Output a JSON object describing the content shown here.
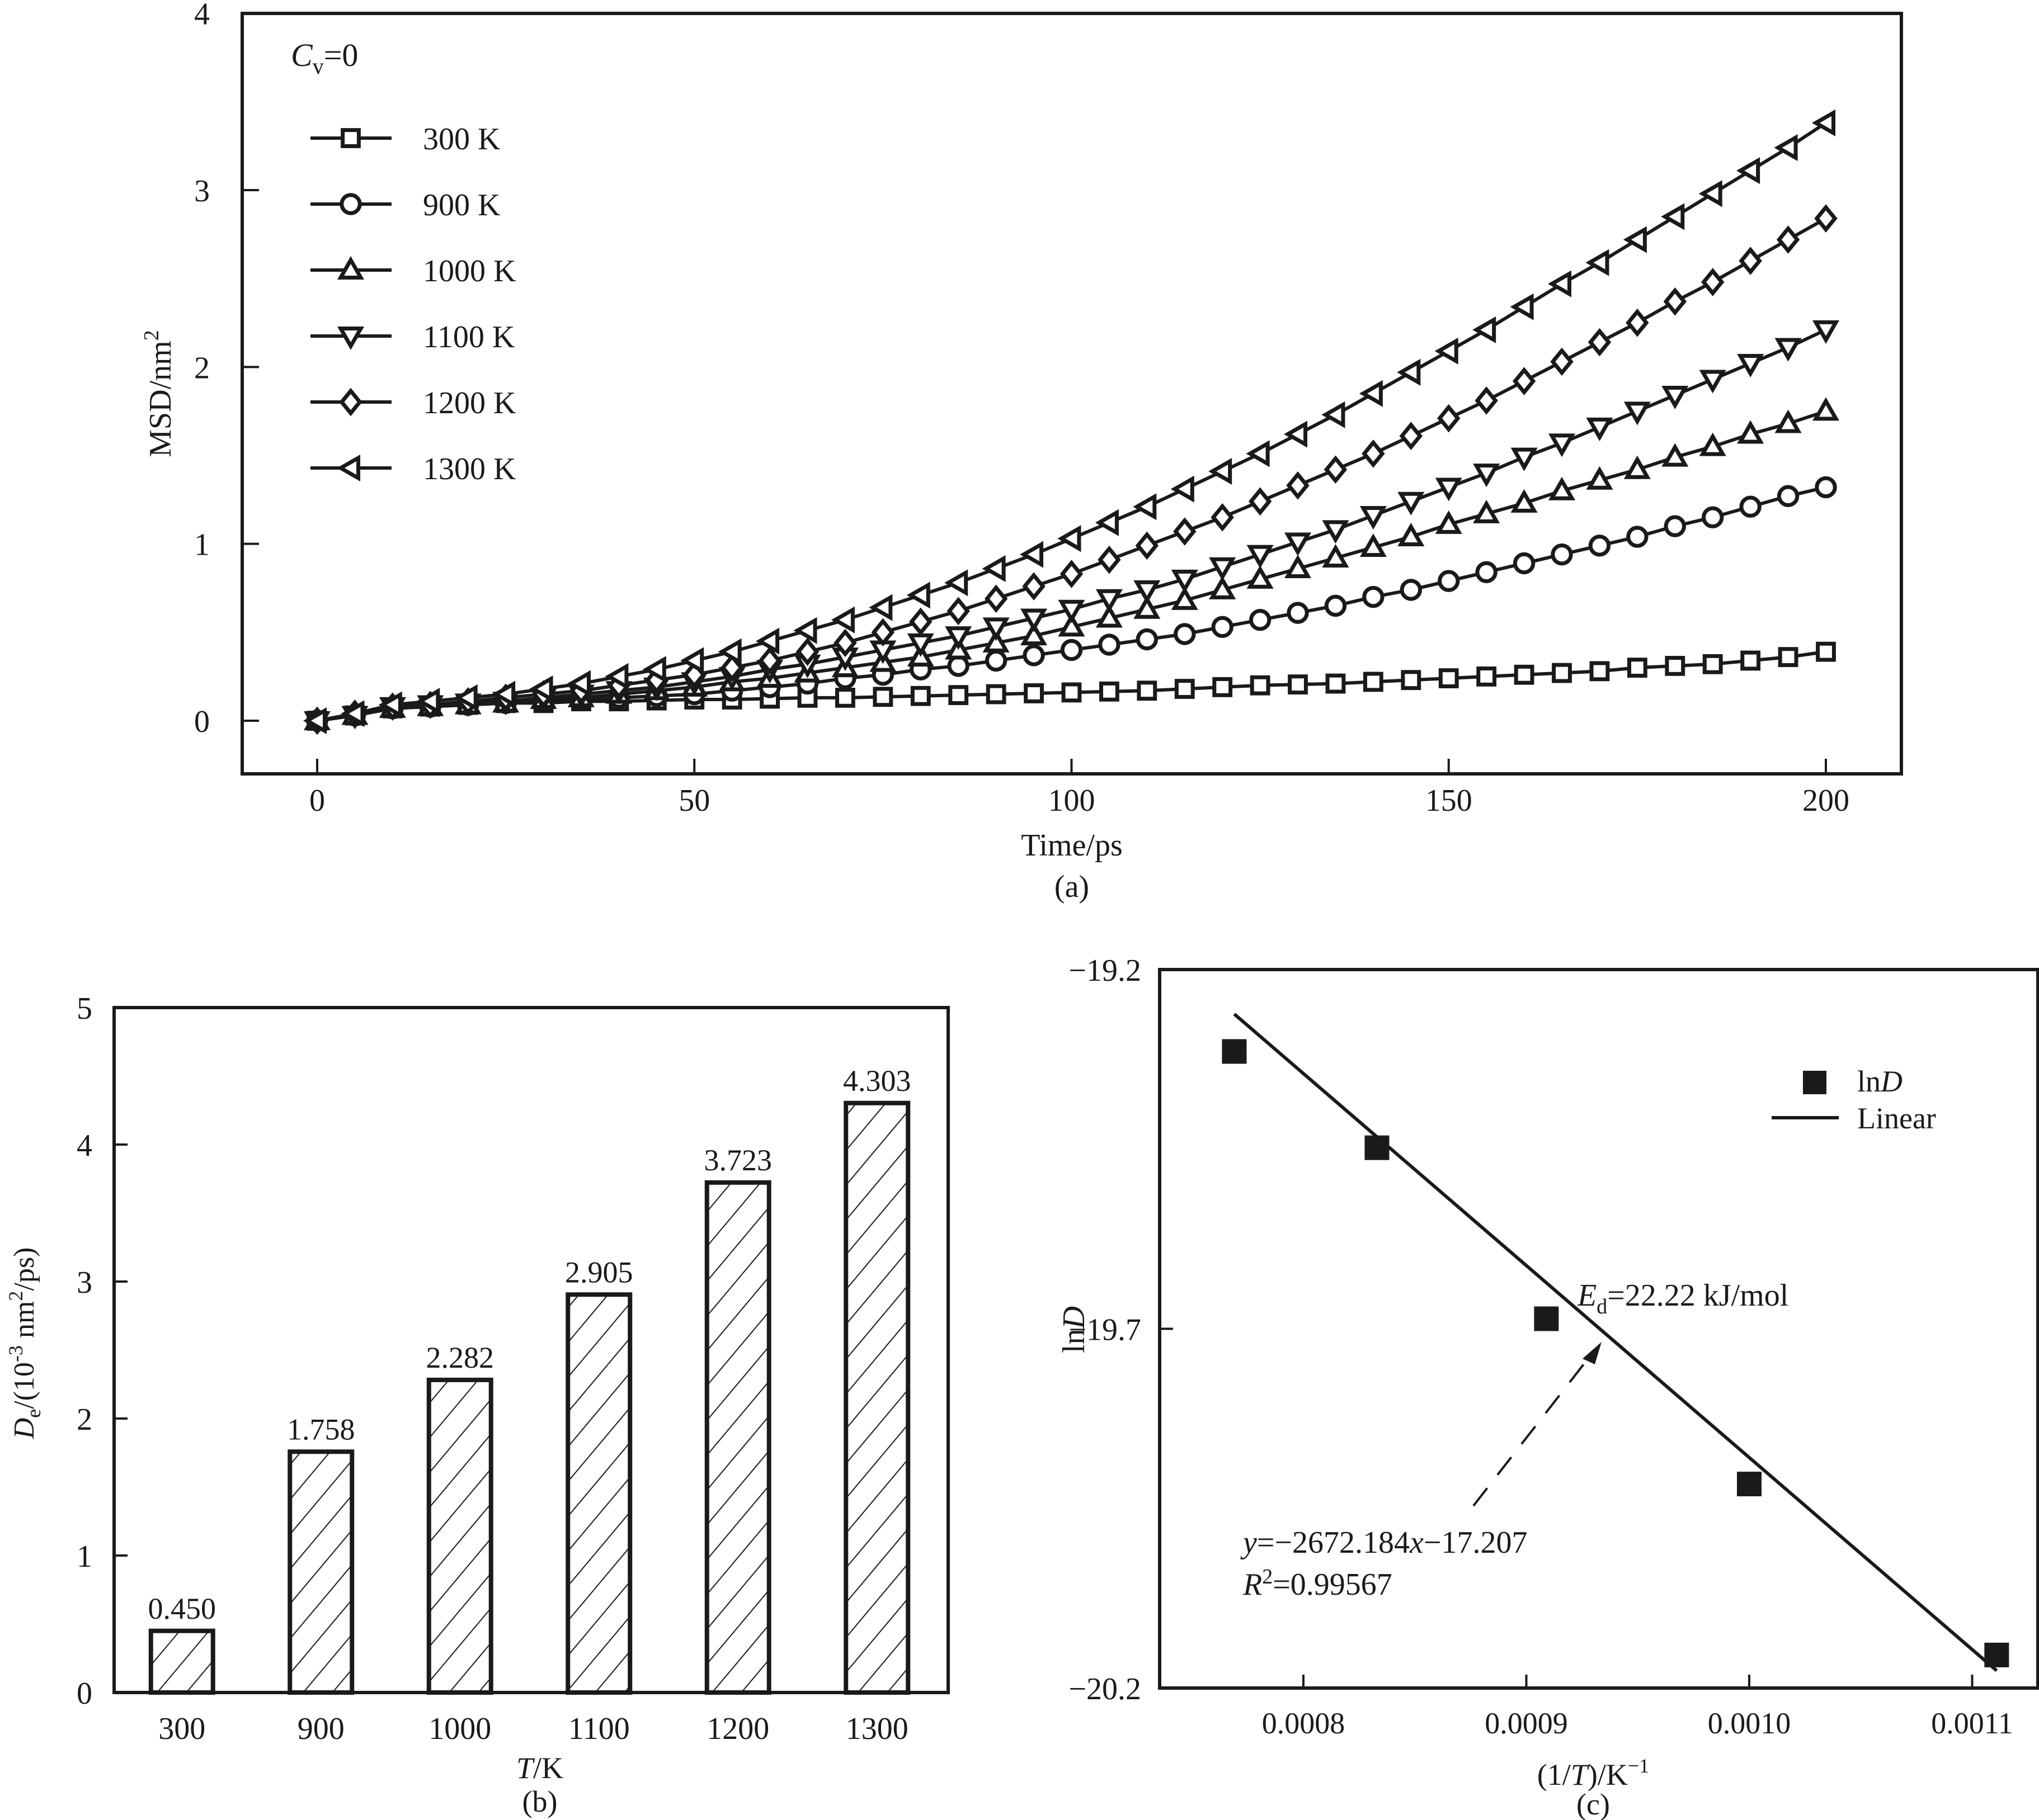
{
  "figure": {
    "panel_labels": [
      "(a)",
      "(b)",
      "(c)"
    ]
  },
  "chart_data": [
    {
      "id": "a",
      "type": "line",
      "title": "",
      "xlabel": "Time/ps",
      "ylabel": "MSD/nm²",
      "ylabel_main": "MSD/nm",
      "ylabel_sup": "2",
      "panel_label": "(a)",
      "xlim": [
        -10,
        210
      ],
      "ylim": [
        -0.3,
        4
      ],
      "xticks": [
        0,
        50,
        100,
        150,
        200
      ],
      "yticks": [
        0,
        1,
        2,
        3,
        4
      ],
      "annotation": {
        "symbol": "C",
        "subscript": "v",
        "rest": "=0"
      },
      "legend_position": "top-left",
      "x": [
        0,
        5,
        10,
        15,
        20,
        25,
        30,
        35,
        40,
        45,
        50,
        55,
        60,
        65,
        70,
        75,
        80,
        85,
        90,
        95,
        100,
        105,
        110,
        115,
        120,
        125,
        130,
        135,
        140,
        145,
        150,
        155,
        160,
        165,
        170,
        175,
        180,
        185,
        190,
        195,
        200
      ],
      "series": [
        {
          "name": "300 K",
          "marker": "square",
          "values": [
            0,
            0.03,
            0.07,
            0.08,
            0.09,
            0.1,
            0.1,
            0.11,
            0.11,
            0.115,
            0.12,
            0.12,
            0.125,
            0.13,
            0.13,
            0.135,
            0.14,
            0.145,
            0.15,
            0.155,
            0.16,
            0.165,
            0.17,
            0.18,
            0.19,
            0.2,
            0.205,
            0.21,
            0.22,
            0.23,
            0.24,
            0.25,
            0.26,
            0.27,
            0.28,
            0.3,
            0.31,
            0.32,
            0.34,
            0.36,
            0.39
          ]
        },
        {
          "name": "900 K",
          "marker": "circle",
          "values": [
            0,
            0.03,
            0.07,
            0.08,
            0.09,
            0.1,
            0.11,
            0.12,
            0.13,
            0.14,
            0.15,
            0.17,
            0.19,
            0.21,
            0.24,
            0.26,
            0.29,
            0.31,
            0.34,
            0.37,
            0.4,
            0.43,
            0.46,
            0.49,
            0.53,
            0.57,
            0.61,
            0.65,
            0.7,
            0.74,
            0.79,
            0.84,
            0.89,
            0.94,
            0.99,
            1.04,
            1.1,
            1.15,
            1.21,
            1.27,
            1.32
          ]
        },
        {
          "name": "1000 K",
          "marker": "triangle-up",
          "values": [
            0,
            0.03,
            0.07,
            0.08,
            0.09,
            0.1,
            0.12,
            0.13,
            0.15,
            0.17,
            0.19,
            0.22,
            0.24,
            0.27,
            0.3,
            0.33,
            0.36,
            0.4,
            0.44,
            0.48,
            0.53,
            0.58,
            0.63,
            0.68,
            0.74,
            0.8,
            0.86,
            0.92,
            0.98,
            1.04,
            1.11,
            1.17,
            1.23,
            1.3,
            1.36,
            1.42,
            1.49,
            1.55,
            1.62,
            1.68,
            1.75
          ]
        },
        {
          "name": "1100 K",
          "marker": "triangle-down",
          "values": [
            0,
            0.03,
            0.08,
            0.09,
            0.1,
            0.11,
            0.13,
            0.15,
            0.17,
            0.19,
            0.22,
            0.25,
            0.29,
            0.32,
            0.36,
            0.4,
            0.44,
            0.48,
            0.53,
            0.58,
            0.63,
            0.69,
            0.74,
            0.8,
            0.87,
            0.94,
            1.01,
            1.08,
            1.16,
            1.24,
            1.32,
            1.4,
            1.49,
            1.57,
            1.66,
            1.75,
            1.84,
            1.93,
            2.02,
            2.11,
            2.21
          ]
        },
        {
          "name": "1200 K",
          "marker": "diamond",
          "values": [
            0,
            0.04,
            0.08,
            0.09,
            0.11,
            0.13,
            0.15,
            0.17,
            0.2,
            0.23,
            0.26,
            0.3,
            0.34,
            0.39,
            0.44,
            0.5,
            0.56,
            0.62,
            0.69,
            0.76,
            0.83,
            0.91,
            0.99,
            1.07,
            1.15,
            1.24,
            1.33,
            1.42,
            1.51,
            1.61,
            1.71,
            1.81,
            1.92,
            2.03,
            2.14,
            2.25,
            2.37,
            2.48,
            2.6,
            2.72,
            2.84
          ]
        },
        {
          "name": "1300 K",
          "marker": "triangle-left",
          "values": [
            0,
            0.04,
            0.09,
            0.11,
            0.13,
            0.15,
            0.18,
            0.21,
            0.25,
            0.29,
            0.34,
            0.39,
            0.45,
            0.51,
            0.57,
            0.64,
            0.71,
            0.78,
            0.86,
            0.94,
            1.03,
            1.12,
            1.21,
            1.31,
            1.41,
            1.51,
            1.62,
            1.73,
            1.85,
            1.97,
            2.09,
            2.21,
            2.34,
            2.47,
            2.59,
            2.72,
            2.85,
            2.98,
            3.11,
            3.24,
            3.38
          ]
        }
      ]
    },
    {
      "id": "b",
      "type": "bar",
      "title": "",
      "xlabel_italic": "T",
      "xlabel_rest": "/K",
      "ylabel": "D_e/(10^-3 nm²/ps)",
      "ylabel_parts": {
        "symbol": "D",
        "subscript": "e",
        "pre": "/(10",
        "exp": "-3",
        "mid": " nm",
        "exp2": "2",
        "post": "/ps)"
      },
      "panel_label": "(b)",
      "ylim": [
        0,
        5
      ],
      "yticks": [
        0,
        1,
        2,
        3,
        4,
        5
      ],
      "categories": [
        "300",
        "900",
        "1000",
        "1100",
        "1200",
        "1300"
      ],
      "values": [
        0.45,
        1.758,
        2.282,
        2.905,
        3.723,
        4.303
      ],
      "labels": [
        "0.450",
        "1.758",
        "2.282",
        "2.905",
        "3.723",
        "4.303"
      ],
      "fill": "hatched"
    },
    {
      "id": "c",
      "type": "scatter",
      "title": "",
      "xlabel_parts": {
        "pre": "(1/",
        "italic": "T",
        "post": ")/K",
        "sup": "−1"
      },
      "ylabel_parts": {
        "pre": "ln",
        "italic": "D"
      },
      "panel_label": "(c)",
      "xlim": [
        0.00074,
        0.001135
      ],
      "ylim": [
        -20.2,
        -19.2
      ],
      "xticks": [
        0.0008,
        0.0009,
        0.001,
        0.0011
      ],
      "xtick_labels": [
        "0.0008",
        "0.0009",
        "0.0010",
        "0.0011"
      ],
      "yticks": [
        -19.2,
        -19.7,
        -20.2
      ],
      "ytick_labels": [
        "−19.2",
        "−19.7",
        "−20.2"
      ],
      "legend_position": "top-right",
      "legend": [
        {
          "label_pre": "ln",
          "label_italic": "D",
          "kind": "marker"
        },
        {
          "label": "Linear",
          "kind": "line"
        }
      ],
      "series": [
        {
          "name": "lnD",
          "x": [
            0.000769,
            0.000833,
            0.000909,
            0.001,
            0.001111
          ],
          "y": [
            -19.314,
            -19.448,
            -19.686,
            -19.916,
            -20.154
          ]
        }
      ],
      "fit": {
        "name": "Linear",
        "slope": -2672.184,
        "intercept": -17.207,
        "r2": 0.99567,
        "x_range": [
          0.000769,
          0.001111
        ]
      },
      "annotations": {
        "activation": {
          "symbol": "E",
          "subscript": "d",
          "rest": "=22.22 kJ/mol"
        },
        "equation": {
          "y": "y",
          "mid": "=−2672.184",
          "x": "x",
          "rest": "−17.207"
        },
        "r2": {
          "symbol": "R",
          "sup": "2",
          "rest": "=0.99567"
        }
      }
    }
  ]
}
